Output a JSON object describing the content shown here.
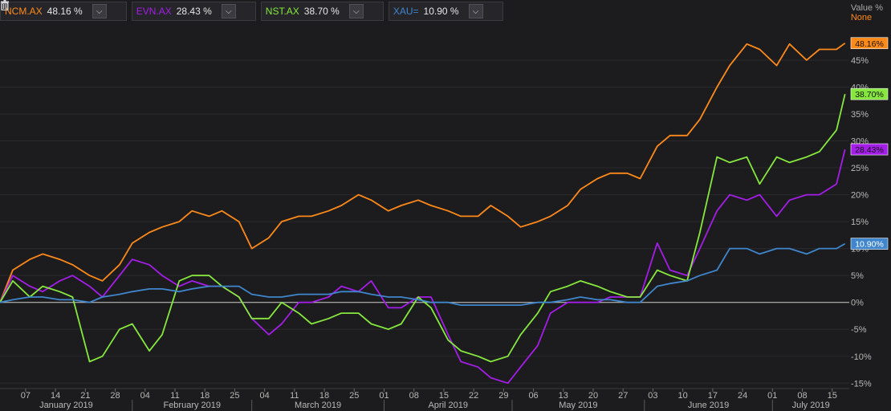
{
  "legend": [
    {
      "symbol": "NCM.AX",
      "value": "48.16 %",
      "color": "#ff8a1a"
    },
    {
      "symbol": "EVN.AX",
      "value": "28.43 %",
      "color": "#a51de8"
    },
    {
      "symbol": "NST.AX",
      "value": "38.70 %",
      "color": "#86e83e"
    },
    {
      "symbol": "XAU=",
      "value": "10.90 %",
      "color": "#3f86cc"
    }
  ],
  "axis_header": {
    "title": "Value %",
    "mode": "None"
  },
  "chart_data": {
    "type": "line",
    "y_unit": "%",
    "ylim": [
      -16,
      52
    ],
    "y_ticks": [
      -15,
      -10,
      -5,
      0,
      5,
      10,
      15,
      20,
      25,
      30,
      35,
      40,
      45
    ],
    "y_tick_labels": [
      "-15%",
      "-10%",
      "-5%",
      "0%",
      "5%",
      "10%",
      "15%",
      "20%",
      "25%",
      "30%",
      "35%",
      "40%",
      "45%"
    ],
    "x_range": [
      "2019-01-01",
      "2019-07-19"
    ],
    "x_ticks": [
      {
        "date": "2019-01-07",
        "label": "07"
      },
      {
        "date": "2019-01-14",
        "label": "14"
      },
      {
        "date": "2019-01-21",
        "label": "21"
      },
      {
        "date": "2019-01-28",
        "label": "28"
      },
      {
        "date": "2019-02-04",
        "label": "04"
      },
      {
        "date": "2019-02-11",
        "label": "11"
      },
      {
        "date": "2019-02-18",
        "label": "18"
      },
      {
        "date": "2019-02-25",
        "label": "25"
      },
      {
        "date": "2019-03-04",
        "label": "04"
      },
      {
        "date": "2019-03-11",
        "label": "11"
      },
      {
        "date": "2019-03-18",
        "label": "18"
      },
      {
        "date": "2019-03-25",
        "label": "25"
      },
      {
        "date": "2019-04-01",
        "label": "01"
      },
      {
        "date": "2019-04-08",
        "label": "08"
      },
      {
        "date": "2019-04-15",
        "label": "15"
      },
      {
        "date": "2019-04-22",
        "label": "22"
      },
      {
        "date": "2019-04-29",
        "label": "29"
      },
      {
        "date": "2019-05-06",
        "label": "06"
      },
      {
        "date": "2019-05-13",
        "label": "13"
      },
      {
        "date": "2019-05-20",
        "label": "20"
      },
      {
        "date": "2019-05-27",
        "label": "27"
      },
      {
        "date": "2019-06-03",
        "label": "03"
      },
      {
        "date": "2019-06-10",
        "label": "10"
      },
      {
        "date": "2019-06-17",
        "label": "17"
      },
      {
        "date": "2019-06-24",
        "label": "24"
      },
      {
        "date": "2019-07-01",
        "label": "01"
      },
      {
        "date": "2019-07-08",
        "label": "08"
      },
      {
        "date": "2019-07-15",
        "label": "15"
      }
    ],
    "months": [
      {
        "label": "January 2019",
        "start": "2019-01-01",
        "end": "2019-02-01"
      },
      {
        "label": "February 2019",
        "start": "2019-02-01",
        "end": "2019-03-01"
      },
      {
        "label": "March 2019",
        "start": "2019-03-01",
        "end": "2019-04-01"
      },
      {
        "label": "April 2019",
        "start": "2019-04-01",
        "end": "2019-05-01"
      },
      {
        "label": "May 2019",
        "start": "2019-05-01",
        "end": "2019-06-01"
      },
      {
        "label": "June 2019",
        "start": "2019-06-01",
        "end": "2019-07-01"
      },
      {
        "label": "July 2019",
        "start": "2019-07-01",
        "end": "2019-07-19"
      }
    ],
    "series": [
      {
        "name": "NCM.AX",
        "color": "#ff8a1a",
        "last_label": "48.16%",
        "x": [
          "2019-01-01",
          "2019-01-04",
          "2019-01-08",
          "2019-01-11",
          "2019-01-15",
          "2019-01-18",
          "2019-01-22",
          "2019-01-25",
          "2019-01-29",
          "2019-02-01",
          "2019-02-05",
          "2019-02-08",
          "2019-02-12",
          "2019-02-15",
          "2019-02-19",
          "2019-02-22",
          "2019-02-26",
          "2019-03-01",
          "2019-03-05",
          "2019-03-08",
          "2019-03-12",
          "2019-03-15",
          "2019-03-19",
          "2019-03-22",
          "2019-03-26",
          "2019-03-29",
          "2019-04-02",
          "2019-04-05",
          "2019-04-09",
          "2019-04-12",
          "2019-04-16",
          "2019-04-19",
          "2019-04-23",
          "2019-04-26",
          "2019-04-30",
          "2019-05-03",
          "2019-05-07",
          "2019-05-10",
          "2019-05-14",
          "2019-05-17",
          "2019-05-21",
          "2019-05-24",
          "2019-05-28",
          "2019-05-31",
          "2019-06-04",
          "2019-06-07",
          "2019-06-11",
          "2019-06-14",
          "2019-06-18",
          "2019-06-21",
          "2019-06-25",
          "2019-06-28",
          "2019-07-02",
          "2019-07-05",
          "2019-07-09",
          "2019-07-12",
          "2019-07-16",
          "2019-07-18"
        ],
        "y": [
          0,
          6,
          8,
          9,
          8,
          7,
          5,
          4,
          7,
          11,
          13,
          14,
          15,
          17,
          16,
          17,
          15,
          10,
          12,
          15,
          16,
          16,
          17,
          18,
          20,
          19,
          17,
          18,
          19,
          18,
          17,
          16,
          16,
          18,
          16,
          14,
          15,
          16,
          18,
          21,
          23,
          24,
          24,
          23,
          29,
          31,
          31,
          34,
          40,
          44,
          48,
          47,
          44,
          48,
          45,
          47,
          47,
          48.16
        ]
      },
      {
        "name": "EVN.AX",
        "color": "#a51de8",
        "last_label": "28.43%",
        "x": [
          "2019-01-01",
          "2019-01-04",
          "2019-01-08",
          "2019-01-11",
          "2019-01-15",
          "2019-01-18",
          "2019-01-22",
          "2019-01-25",
          "2019-01-29",
          "2019-02-01",
          "2019-02-05",
          "2019-02-08",
          "2019-02-12",
          "2019-02-15",
          "2019-02-19",
          "2019-02-22",
          "2019-02-26",
          "2019-03-01",
          "2019-03-05",
          "2019-03-08",
          "2019-03-12",
          "2019-03-15",
          "2019-03-19",
          "2019-03-22",
          "2019-03-26",
          "2019-03-29",
          "2019-04-02",
          "2019-04-05",
          "2019-04-09",
          "2019-04-12",
          "2019-04-16",
          "2019-04-19",
          "2019-04-23",
          "2019-04-26",
          "2019-04-30",
          "2019-05-03",
          "2019-05-07",
          "2019-05-10",
          "2019-05-14",
          "2019-05-17",
          "2019-05-21",
          "2019-05-24",
          "2019-05-28",
          "2019-05-31",
          "2019-06-04",
          "2019-06-07",
          "2019-06-11",
          "2019-06-14",
          "2019-06-18",
          "2019-06-21",
          "2019-06-25",
          "2019-06-28",
          "2019-07-02",
          "2019-07-05",
          "2019-07-09",
          "2019-07-12",
          "2019-07-16",
          "2019-07-18"
        ],
        "y": [
          0,
          5,
          3,
          2,
          4,
          5,
          3,
          1,
          5,
          8,
          7,
          5,
          3,
          4,
          3,
          3,
          1,
          -3,
          -6,
          -4,
          0,
          0,
          1,
          3,
          2,
          4,
          -1,
          -1,
          1,
          1,
          -6,
          -11,
          -12,
          -14,
          -15,
          -12,
          -8,
          -2,
          0,
          0,
          0,
          1,
          1,
          1,
          11,
          6,
          5,
          10,
          17,
          20,
          19,
          20,
          16,
          19,
          20,
          20,
          22,
          28.43
        ]
      },
      {
        "name": "NST.AX",
        "color": "#86e83e",
        "last_label": "38.70%",
        "x": [
          "2019-01-01",
          "2019-01-04",
          "2019-01-08",
          "2019-01-11",
          "2019-01-15",
          "2019-01-18",
          "2019-01-22",
          "2019-01-25",
          "2019-01-29",
          "2019-02-01",
          "2019-02-05",
          "2019-02-08",
          "2019-02-12",
          "2019-02-15",
          "2019-02-19",
          "2019-02-22",
          "2019-02-26",
          "2019-03-01",
          "2019-03-05",
          "2019-03-08",
          "2019-03-12",
          "2019-03-15",
          "2019-03-19",
          "2019-03-22",
          "2019-03-26",
          "2019-03-29",
          "2019-04-02",
          "2019-04-05",
          "2019-04-09",
          "2019-04-12",
          "2019-04-16",
          "2019-04-19",
          "2019-04-23",
          "2019-04-26",
          "2019-04-30",
          "2019-05-03",
          "2019-05-07",
          "2019-05-10",
          "2019-05-14",
          "2019-05-17",
          "2019-05-21",
          "2019-05-24",
          "2019-05-28",
          "2019-05-31",
          "2019-06-04",
          "2019-06-07",
          "2019-06-11",
          "2019-06-14",
          "2019-06-18",
          "2019-06-21",
          "2019-06-25",
          "2019-06-28",
          "2019-07-02",
          "2019-07-05",
          "2019-07-09",
          "2019-07-12",
          "2019-07-16",
          "2019-07-18"
        ],
        "y": [
          0,
          4,
          1,
          3,
          2,
          1,
          -11,
          -10,
          -5,
          -4,
          -9,
          -6,
          4,
          5,
          5,
          3,
          1,
          -3,
          -3,
          0,
          -2,
          -4,
          -3,
          -2,
          -2,
          -4,
          -5,
          -4,
          1,
          -1,
          -7,
          -9,
          -10,
          -11,
          -10,
          -6,
          -2,
          2,
          3,
          4,
          3,
          2,
          1,
          1,
          6,
          5,
          4,
          13,
          27,
          26,
          27,
          22,
          27,
          26,
          27,
          28,
          32,
          38.7
        ]
      },
      {
        "name": "XAU=",
        "color": "#3f86cc",
        "last_label": "10.90%",
        "x": [
          "2019-01-01",
          "2019-01-04",
          "2019-01-08",
          "2019-01-11",
          "2019-01-15",
          "2019-01-18",
          "2019-01-22",
          "2019-01-25",
          "2019-01-29",
          "2019-02-01",
          "2019-02-05",
          "2019-02-08",
          "2019-02-12",
          "2019-02-15",
          "2019-02-19",
          "2019-02-22",
          "2019-02-26",
          "2019-03-01",
          "2019-03-05",
          "2019-03-08",
          "2019-03-12",
          "2019-03-15",
          "2019-03-19",
          "2019-03-22",
          "2019-03-26",
          "2019-03-29",
          "2019-04-02",
          "2019-04-05",
          "2019-04-09",
          "2019-04-12",
          "2019-04-16",
          "2019-04-19",
          "2019-04-23",
          "2019-04-26",
          "2019-04-30",
          "2019-05-03",
          "2019-05-07",
          "2019-05-10",
          "2019-05-14",
          "2019-05-17",
          "2019-05-21",
          "2019-05-24",
          "2019-05-28",
          "2019-05-31",
          "2019-06-04",
          "2019-06-07",
          "2019-06-11",
          "2019-06-14",
          "2019-06-18",
          "2019-06-21",
          "2019-06-25",
          "2019-06-28",
          "2019-07-02",
          "2019-07-05",
          "2019-07-09",
          "2019-07-12",
          "2019-07-16",
          "2019-07-18"
        ],
        "y": [
          0,
          0.5,
          1,
          1,
          0.5,
          0.5,
          0,
          1,
          1.5,
          2,
          2.5,
          2.5,
          2,
          2.5,
          3,
          3,
          3,
          1.5,
          1,
          1,
          1.5,
          1.5,
          1.5,
          2,
          2,
          1.5,
          1,
          1,
          0.5,
          0,
          0,
          -0.5,
          -0.5,
          -0.5,
          -0.5,
          -0.5,
          0,
          0,
          0.5,
          1,
          0.5,
          0.5,
          0,
          0,
          3,
          3.5,
          4,
          5,
          6,
          10,
          10,
          9,
          10,
          10,
          9,
          10,
          10,
          10.9
        ]
      }
    ]
  }
}
